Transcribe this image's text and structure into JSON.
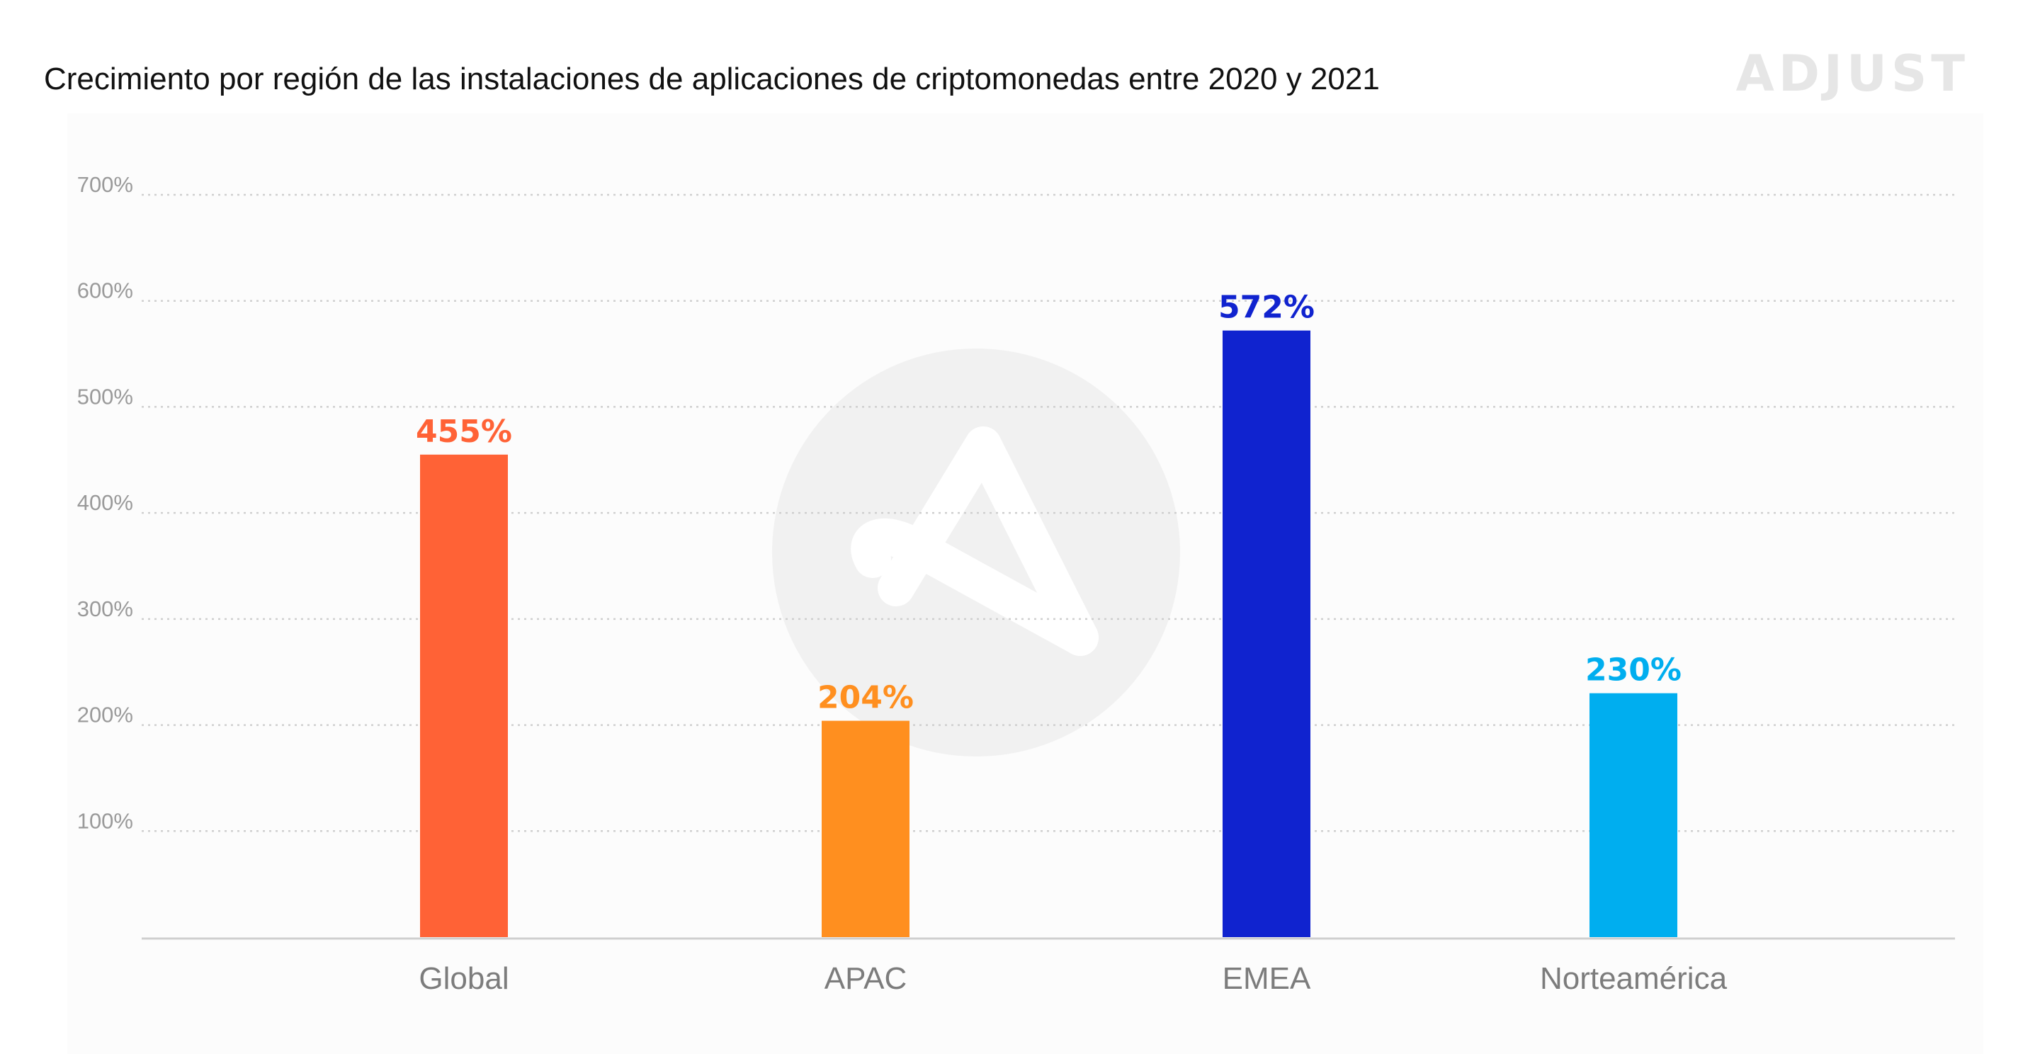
{
  "chart_data": {
    "type": "bar",
    "title": "Crecimiento por región de las instalaciones de aplicaciones de criptomonedas entre 2020 y 2021",
    "categories": [
      "Global",
      "APAC",
      "EMEA",
      "Norteamérica"
    ],
    "values": [
      455,
      204,
      572,
      230
    ],
    "data_labels": [
      "455%",
      "204%",
      "572%",
      "230%"
    ],
    "colors": [
      "#FF6236",
      "#FF8F1F",
      "#1023CF",
      "#00AEEF"
    ],
    "ylim": [
      0,
      700
    ],
    "yticks": [
      100,
      200,
      300,
      400,
      500,
      600,
      700
    ],
    "ytick_labels": [
      "100%",
      "200%",
      "300%",
      "400%",
      "500%",
      "600%",
      "700%"
    ],
    "grid": true,
    "xlabel": "",
    "ylabel": ""
  },
  "brand": {
    "logo_text": "ADJUST",
    "watermark": "adjust-a-icon"
  }
}
